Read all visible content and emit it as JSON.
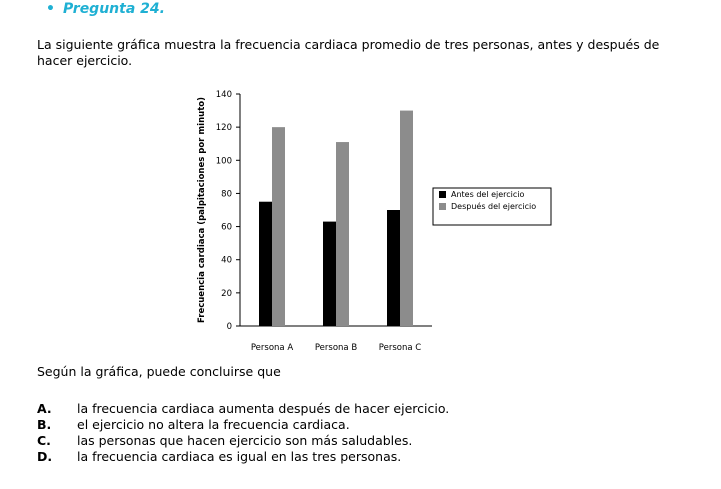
{
  "question": {
    "bullet": "•",
    "title": "Pregunta 24.",
    "intro": "La siguiente gráfica muestra la frecuencia cardiaca promedio de tres personas, antes y después de hacer ejercicio.",
    "prompt": "Según  la gráfica, puede concluirse que",
    "options": [
      {
        "letter": "A.",
        "text": "la frecuencia cardiaca aumenta después de hacer ejercicio."
      },
      {
        "letter": "B.",
        "text": "el ejercicio no altera la frecuencia cardiaca."
      },
      {
        "letter": "C.",
        "text": "las personas que hacen ejercicio son más saludables."
      },
      {
        "letter": "D.",
        "text": "la frecuencia cardiaca es igual en las tres personas."
      }
    ]
  },
  "colors": {
    "heading": "#1fb0d3",
    "series_before": "#000000",
    "series_after": "#8c8c8c",
    "axis": "#000000"
  },
  "chart_data": {
    "type": "bar",
    "categories": [
      "Persona A",
      "Persona B",
      "Persona C"
    ],
    "series": [
      {
        "name": "Antes del ejercicio",
        "values": [
          75,
          63,
          70
        ]
      },
      {
        "name": "Después del ejercicio",
        "values": [
          120,
          111,
          130
        ]
      }
    ],
    "title": "",
    "xlabel": "",
    "ylabel": "Frecuencia cardiaca (palpitaciones por minuto)",
    "ylim": [
      0,
      140
    ],
    "yticks": [
      0,
      20,
      40,
      60,
      80,
      100,
      120,
      140
    ],
    "grid": false,
    "legend_position": "right"
  }
}
